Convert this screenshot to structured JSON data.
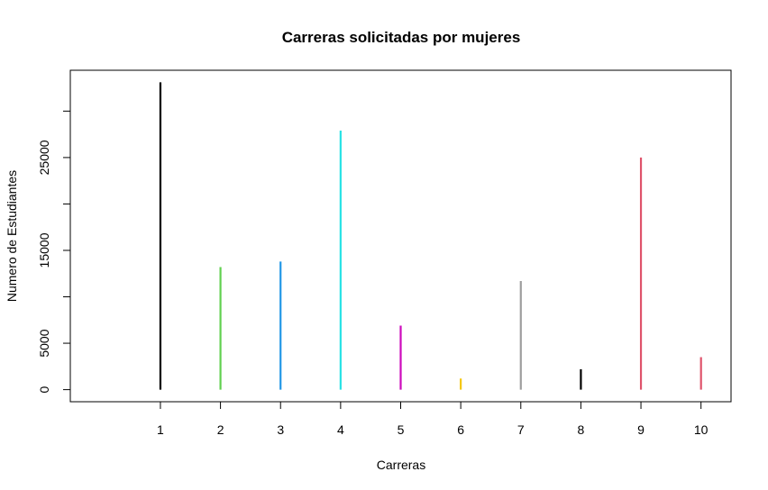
{
  "chart_data": {
    "type": "bar",
    "title": "Carreras solicitadas por mujeres",
    "xlabel": "Carreras",
    "ylabel": "Numero de Estudiantes",
    "categories": [
      "1",
      "2",
      "3",
      "4",
      "5",
      "6",
      "7",
      "8",
      "9",
      "10"
    ],
    "values": [
      33100,
      13200,
      13800,
      27900,
      6900,
      1200,
      11700,
      2200,
      25000,
      3500
    ],
    "colors": [
      "#000000",
      "#61d04f",
      "#2297e6",
      "#28e2e5",
      "#cd0bbc",
      "#f5c710",
      "#9e9e9e",
      "#000000",
      "#df536b",
      "#df536b"
    ],
    "xlim": [
      -0.5,
      10.5
    ],
    "ylim": [
      -1300,
      34400
    ],
    "yticks": [
      0,
      5000,
      10000,
      15000,
      20000,
      25000,
      30000
    ],
    "ytick_labels": [
      "0",
      "5000",
      "",
      "15000",
      "",
      "25000",
      ""
    ],
    "grid": false,
    "legend": "none"
  }
}
